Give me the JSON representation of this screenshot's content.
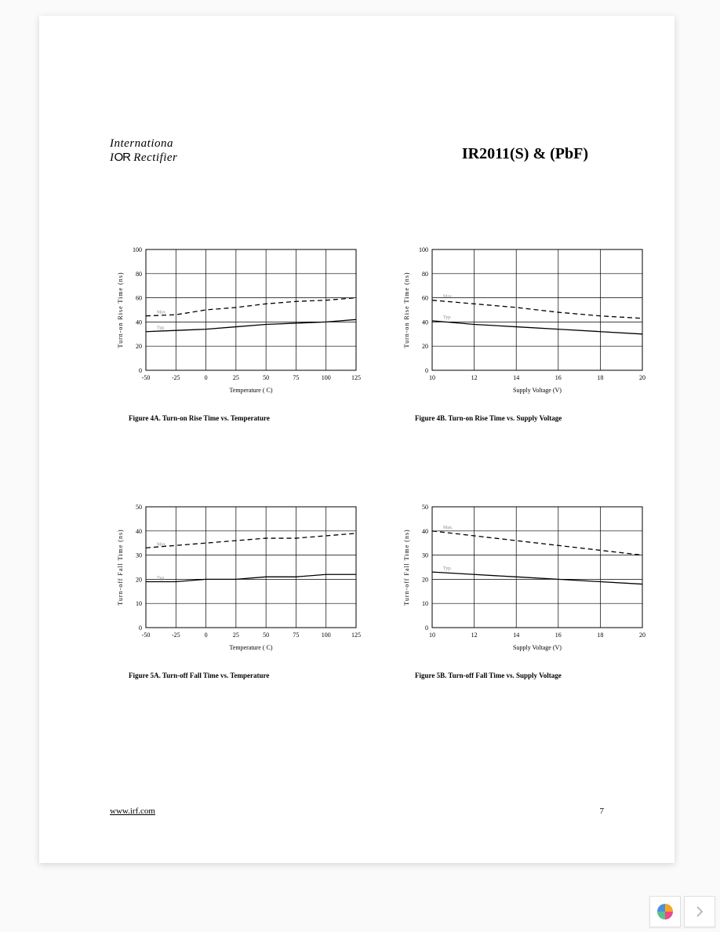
{
  "header": {
    "company_line1": "Internationa",
    "company_line2_prefix": "I",
    "company_line2_mid": "OR",
    "company_line2_suffix": " Rectifier",
    "part_number": "IR2011(S) & (PbF)"
  },
  "charts": {
    "fig4a": {
      "type": "line",
      "caption": "Figure 4A.  Turn-on Rise Time vs.  Temperature",
      "ylabel": "Turn-on Rise  Time  (ns)",
      "xlabel_prefix": "Temperature (",
      "xlabel_unit": "C)",
      "xlim": [
        -50,
        125
      ],
      "ylim": [
        0,
        100
      ],
      "xticks": [
        -50,
        -25,
        0,
        25,
        50,
        75,
        100,
        125
      ],
      "yticks": [
        0,
        20,
        40,
        60,
        80,
        100
      ],
      "line_color": "#000000",
      "grid_color": "#000000",
      "background_color": "#ffffff",
      "label_max": "Max.",
      "label_typ": "Typ.",
      "series": {
        "max": {
          "dash": true,
          "points": [
            [
              -50,
              45
            ],
            [
              -25,
              46
            ],
            [
              0,
              50
            ],
            [
              25,
              52
            ],
            [
              50,
              55
            ],
            [
              75,
              57
            ],
            [
              100,
              58
            ],
            [
              125,
              60
            ]
          ]
        },
        "typ": {
          "dash": false,
          "points": [
            [
              -50,
              32
            ],
            [
              -25,
              33
            ],
            [
              0,
              34
            ],
            [
              25,
              36
            ],
            [
              50,
              38
            ],
            [
              75,
              39
            ],
            [
              100,
              40
            ],
            [
              125,
              42
            ]
          ]
        }
      },
      "font_axis": 8,
      "font_label": 8
    },
    "fig4b": {
      "type": "line",
      "caption": "Figure 4B. Turn-on Rise Time vs. Supply Voltage",
      "ylabel": "Turn-on Rise  Time  (ns)",
      "xlabel": "Supply Voltage (V)",
      "xlim": [
        10,
        20
      ],
      "ylim": [
        0,
        100
      ],
      "xticks": [
        10,
        12,
        14,
        16,
        18,
        20
      ],
      "yticks": [
        0,
        20,
        40,
        60,
        80,
        100
      ],
      "line_color": "#000000",
      "grid_color": "#000000",
      "background_color": "#ffffff",
      "label_max": "Max.",
      "label_typ": "Typ.",
      "series": {
        "max": {
          "dash": true,
          "points": [
            [
              10,
              58
            ],
            [
              12,
              55
            ],
            [
              14,
              52
            ],
            [
              16,
              48
            ],
            [
              18,
              45
            ],
            [
              20,
              43
            ]
          ]
        },
        "typ": {
          "dash": false,
          "points": [
            [
              10,
              41
            ],
            [
              12,
              38
            ],
            [
              14,
              36
            ],
            [
              16,
              34
            ],
            [
              18,
              32
            ],
            [
              20,
              30
            ]
          ]
        }
      },
      "font_axis": 8,
      "font_label": 8
    },
    "fig5a": {
      "type": "line",
      "caption": "Figure 5A. Turn-off Fall Time vs. Temperature",
      "ylabel": "Turn-off Fall Time  (ns)",
      "xlabel_prefix": "Temperature (",
      "xlabel_unit": "C)",
      "xlim": [
        -50,
        125
      ],
      "ylim": [
        0,
        50
      ],
      "xticks": [
        -50,
        -25,
        0,
        25,
        50,
        75,
        100,
        125
      ],
      "yticks": [
        0,
        10,
        20,
        30,
        40,
        50
      ],
      "line_color": "#000000",
      "grid_color": "#000000",
      "background_color": "#ffffff",
      "label_max": "Max.",
      "label_typ": "Typ.",
      "series": {
        "max": {
          "dash": true,
          "points": [
            [
              -50,
              33
            ],
            [
              -25,
              34
            ],
            [
              0,
              35
            ],
            [
              25,
              36
            ],
            [
              50,
              37
            ],
            [
              75,
              37
            ],
            [
              100,
              38
            ],
            [
              125,
              39
            ]
          ]
        },
        "typ": {
          "dash": false,
          "points": [
            [
              -50,
              19
            ],
            [
              -25,
              19
            ],
            [
              0,
              20
            ],
            [
              25,
              20
            ],
            [
              50,
              21
            ],
            [
              75,
              21
            ],
            [
              100,
              22
            ],
            [
              125,
              22
            ]
          ]
        }
      },
      "font_axis": 8,
      "font_label": 8
    },
    "fig5b": {
      "type": "line",
      "caption": "Figure 5B. Turn-off Fall Time vs. Supply Voltage",
      "ylabel": "Turn-off Fall Time  (ns)",
      "xlabel": "Supply Voltage (V)",
      "xlim": [
        10,
        20
      ],
      "ylim": [
        0,
        50
      ],
      "xticks": [
        10,
        12,
        14,
        16,
        18,
        20
      ],
      "yticks": [
        0,
        10,
        20,
        30,
        40,
        50
      ],
      "line_color": "#000000",
      "grid_color": "#000000",
      "background_color": "#ffffff",
      "label_max": "Max.",
      "label_typ": "Typ.",
      "series": {
        "max": {
          "dash": true,
          "points": [
            [
              10,
              40
            ],
            [
              12,
              38
            ],
            [
              14,
              36
            ],
            [
              16,
              34
            ],
            [
              18,
              32
            ],
            [
              20,
              30
            ]
          ]
        },
        "typ": {
          "dash": false,
          "points": [
            [
              10,
              23
            ],
            [
              12,
              22
            ],
            [
              14,
              21
            ],
            [
              16,
              20
            ],
            [
              18,
              19
            ],
            [
              20,
              18
            ]
          ]
        }
      },
      "font_axis": 8,
      "font_label": 8
    }
  },
  "footer": {
    "url": "www.irf.com",
    "page_number": "7"
  },
  "ui": {
    "logo_colors": [
      "#f5a623",
      "#e94b8a",
      "#5ac18e",
      "#4a90e2"
    ],
    "chevron_color": "#bbbbbb"
  }
}
